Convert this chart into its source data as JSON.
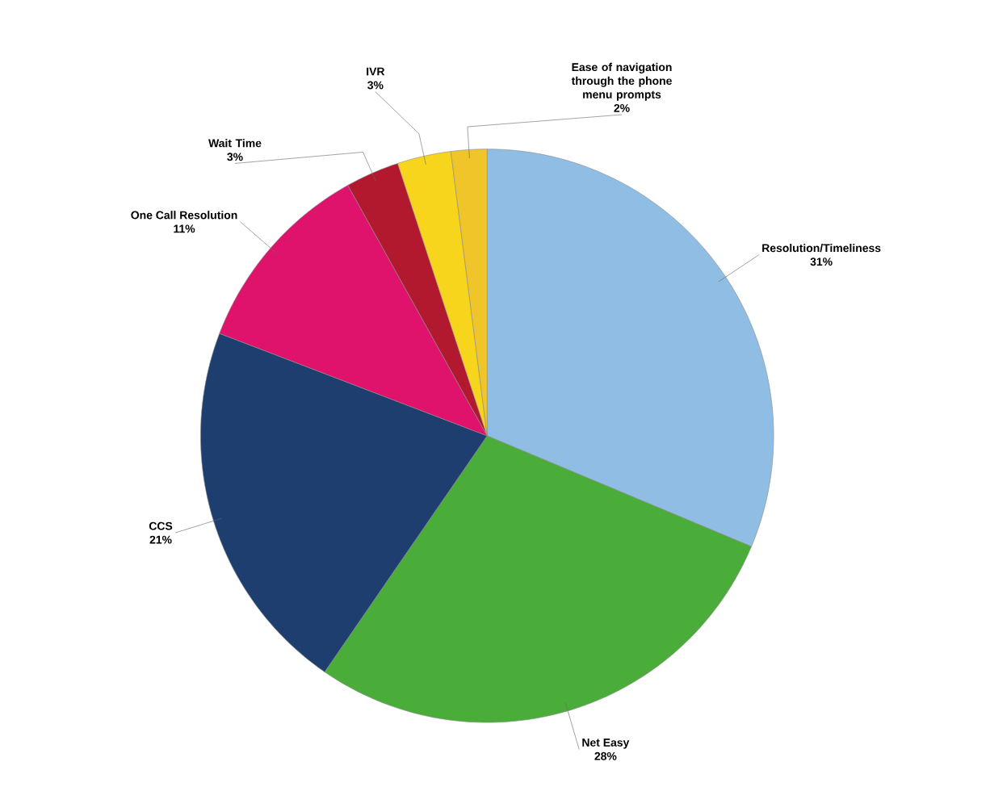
{
  "chart_data": {
    "type": "pie",
    "categories": [
      "Resolution/Timeliness",
      "Net Easy",
      "CCS",
      "One Call Resolution",
      "Wait Time",
      "IVR",
      "Ease of navigation through the phone menu prompts"
    ],
    "values": [
      31,
      28,
      21,
      11,
      3,
      3,
      2
    ],
    "value_labels": [
      "31%",
      "28%",
      "21%",
      "11%",
      "3%",
      "3%",
      "2%"
    ],
    "colors": [
      "#8fbde3",
      "#4aad3a",
      "#1d3e6e",
      "#e0136c",
      "#b3192e",
      "#f7d51c",
      "#f0c52a"
    ]
  }
}
